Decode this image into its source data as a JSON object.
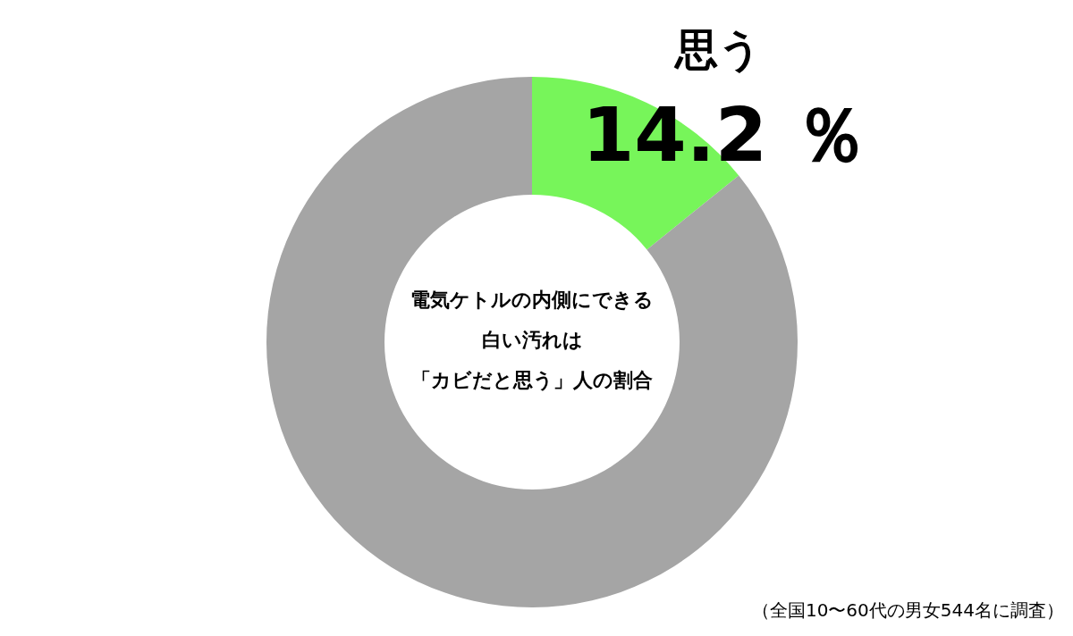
{
  "chart_data": {
    "type": "donut",
    "title": "電気ケトルの内側にできる白い汚れは",
    "subtitle": "「カビだと思う」人の割合",
    "categories": [
      "思う",
      null
    ],
    "values": [
      14.2,
      85.8
    ],
    "colors": [
      "#77f55a",
      "#a5a5a5"
    ],
    "value_labels": [
      "14.2 ％",
      null
    ],
    "legend": false,
    "annotations": [
      "（全国10〜60代の男女544名に調査）"
    ]
  }
}
